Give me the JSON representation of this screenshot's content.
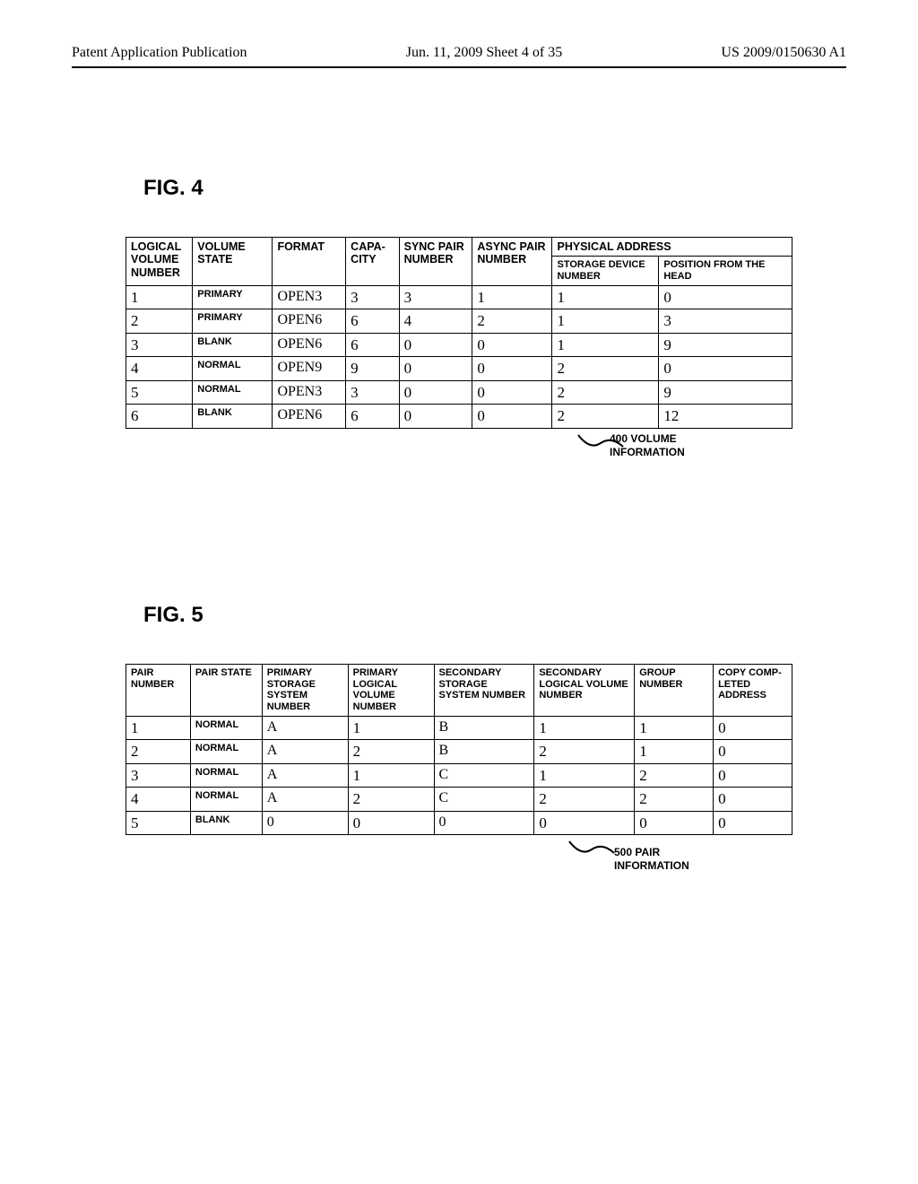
{
  "header": {
    "left": "Patent Application Publication",
    "center": "Jun. 11, 2009  Sheet 4 of 35",
    "right": "US 2009/0150630 A1"
  },
  "fig4": {
    "label": "FIG. 4",
    "callout": "400 VOLUME\nINFORMATION",
    "headers": {
      "logical_volume_number": "LOGICAL VOLUME NUMBER",
      "volume_state": "VOLUME STATE",
      "format": "FORMAT",
      "capacity": "CAPA-\nCITY",
      "sync_pair_number": "SYNC PAIR NUMBER",
      "async_pair_number": "ASYNC PAIR NUMBER",
      "physical_address": "PHYSICAL ADDRESS",
      "storage_device_number": "STORAGE DEVICE NUMBER",
      "position_from_head": "POSITION FROM THE HEAD"
    },
    "rows": [
      {
        "lvn": "1",
        "vs": "PRIMARY",
        "fmt": "OPEN3",
        "cap": "3",
        "sync": "3",
        "async": "1",
        "sdn": "1",
        "pos": "0"
      },
      {
        "lvn": "2",
        "vs": "PRIMARY",
        "fmt": "OPEN6",
        "cap": "6",
        "sync": "4",
        "async": "2",
        "sdn": "1",
        "pos": "3"
      },
      {
        "lvn": "3",
        "vs": "BLANK",
        "fmt": "OPEN6",
        "cap": "6",
        "sync": "0",
        "async": "0",
        "sdn": "1",
        "pos": "9"
      },
      {
        "lvn": "4",
        "vs": "NORMAL",
        "fmt": "OPEN9",
        "cap": "9",
        "sync": "0",
        "async": "0",
        "sdn": "2",
        "pos": "0"
      },
      {
        "lvn": "5",
        "vs": "NORMAL",
        "fmt": "OPEN3",
        "cap": "3",
        "sync": "0",
        "async": "0",
        "sdn": "2",
        "pos": "9"
      },
      {
        "lvn": "6",
        "vs": "BLANK",
        "fmt": "OPEN6",
        "cap": "6",
        "sync": "0",
        "async": "0",
        "sdn": "2",
        "pos": "12"
      }
    ]
  },
  "fig5": {
    "label": "FIG. 5",
    "callout": "500 PAIR\nINFORMATION",
    "headers": {
      "pair_number": "PAIR NUMBER",
      "pair_state": "PAIR STATE",
      "primary_storage_system_number": "PRIMARY STORAGE SYSTEM NUMBER",
      "primary_logical_volume_number": "PRIMARY LOGICAL VOLUME NUMBER",
      "secondary_storage_system_number": "SECONDARY STORAGE SYSTEM NUMBER",
      "secondary_logical_volume_number": "SECONDARY LOGICAL VOLUME NUMBER",
      "group_number": "GROUP NUMBER",
      "copy_completed_address": "COPY COMP-\nLETED ADDRESS"
    },
    "rows": [
      {
        "pn": "1",
        "ps": "NORMAL",
        "pssn": "A",
        "plvn": "1",
        "sssn": "B",
        "slvn": "1",
        "gn": "1",
        "cca": "0"
      },
      {
        "pn": "2",
        "ps": "NORMAL",
        "pssn": "A",
        "plvn": "2",
        "sssn": "B",
        "slvn": "2",
        "gn": "1",
        "cca": "0"
      },
      {
        "pn": "3",
        "ps": "NORMAL",
        "pssn": "A",
        "plvn": "1",
        "sssn": "C",
        "slvn": "1",
        "gn": "2",
        "cca": "0"
      },
      {
        "pn": "4",
        "ps": "NORMAL",
        "pssn": "A",
        "plvn": "2",
        "sssn": "C",
        "slvn": "2",
        "gn": "2",
        "cca": "0"
      },
      {
        "pn": "5",
        "ps": "BLANK",
        "pssn": "0",
        "plvn": "0",
        "sssn": "0",
        "slvn": "0",
        "gn": "0",
        "cca": "0"
      }
    ]
  },
  "style": {
    "page_bg": "#ffffff",
    "text_color": "#000000",
    "border_color": "#000000",
    "header_font_size_pt": 12,
    "body_serif_font_size_pt": 13,
    "small_bold_font_size_pt": 9
  }
}
